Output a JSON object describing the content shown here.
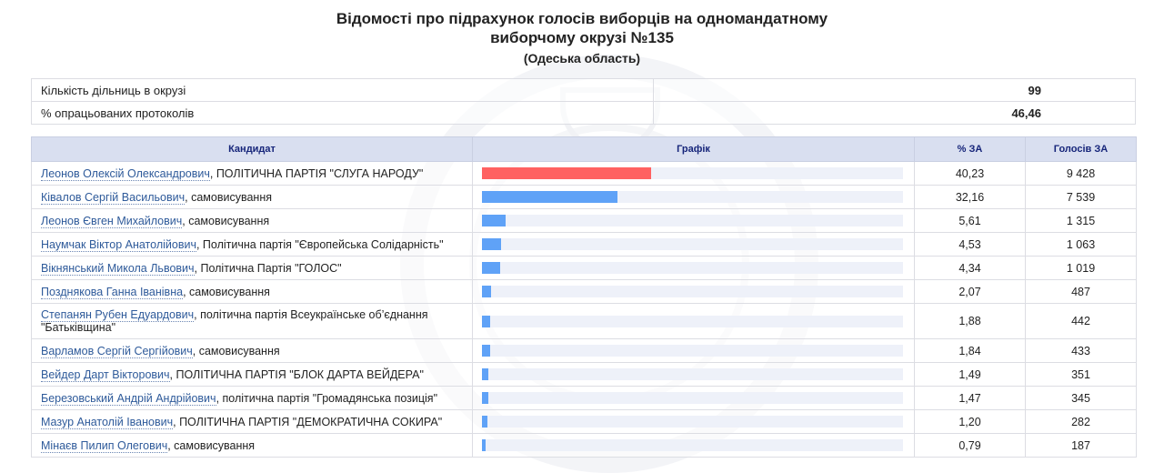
{
  "header": {
    "title_line1": "Відомості про підрахунок голосів виборців на одномандатному",
    "title_line2": "виборчому окрузі №135",
    "region": "(Одеська область)"
  },
  "summary": [
    {
      "label": "Кількість дільниць в окрузі",
      "value": "99"
    },
    {
      "label": "% опрацьованих протоколів",
      "value": "46,46"
    }
  ],
  "table": {
    "columns": [
      "Кандидат",
      "Графік",
      "% ЗА",
      "Голосів ЗА"
    ],
    "colors": {
      "leader": "#ff6161",
      "other": "#5fa2f7"
    },
    "rows": [
      {
        "name": "Леонов Олексій Олександрович",
        "party": ", ПОЛІТИЧНА ПАРТІЯ \"СЛУГА НАРОДУ\"",
        "pct": "40,23",
        "pct_value": 40.23,
        "votes": "9 428",
        "color": "#ff6161"
      },
      {
        "name": "Ківалов Сергій Васильович",
        "party": ", самовисування",
        "pct": "32,16",
        "pct_value": 32.16,
        "votes": "7 539",
        "color": "#5fa2f7"
      },
      {
        "name": "Леонов Євген Михайлович",
        "party": ", самовисування",
        "pct": "5,61",
        "pct_value": 5.61,
        "votes": "1 315",
        "color": "#5fa2f7"
      },
      {
        "name": "Наумчак Віктор Анатолійович",
        "party": ", Політична партія \"Європейська Солідарність\"",
        "pct": "4,53",
        "pct_value": 4.53,
        "votes": "1 063",
        "color": "#5fa2f7"
      },
      {
        "name": "Вікнянський Микола Львович",
        "party": ", Політична Партія \"ГОЛОС\"",
        "pct": "4,34",
        "pct_value": 4.34,
        "votes": "1 019",
        "color": "#5fa2f7"
      },
      {
        "name": "Позднякова Ганна Іванівна",
        "party": ", самовисування",
        "pct": "2,07",
        "pct_value": 2.07,
        "votes": "487",
        "color": "#5fa2f7"
      },
      {
        "name": "Степанян Рубен Едуардович",
        "party": ", політична партія Всеукраїнське об’єднання \"Батьківщина\"",
        "pct": "1,88",
        "pct_value": 1.88,
        "votes": "442",
        "color": "#5fa2f7",
        "tall": true
      },
      {
        "name": "Варламов Сергій Сергійович",
        "party": ", самовисування",
        "pct": "1,84",
        "pct_value": 1.84,
        "votes": "433",
        "color": "#5fa2f7"
      },
      {
        "name": "Вейдер Дарт Вікторович",
        "party": ", ПОЛІТИЧНА ПАРТІЯ \"БЛОК ДАРТА ВЕЙДЕРА\"",
        "pct": "1,49",
        "pct_value": 1.49,
        "votes": "351",
        "color": "#5fa2f7"
      },
      {
        "name": "Березовський Андрій Андрійович",
        "party": ", політична партія \"Громадянська позиція\"",
        "pct": "1,47",
        "pct_value": 1.47,
        "votes": "345",
        "color": "#5fa2f7"
      },
      {
        "name": "Мазур Анатолій Іванович",
        "party": ", ПОЛІТИЧНА ПАРТІЯ \"ДЕМОКРАТИЧНА СОКИРА\"",
        "pct": "1,20",
        "pct_value": 1.2,
        "votes": "282",
        "color": "#5fa2f7"
      },
      {
        "name": "Мінаєв Пилип Олегович",
        "party": ", самовисування",
        "pct": "0,79",
        "pct_value": 0.79,
        "votes": "187",
        "color": "#5fa2f7"
      }
    ]
  }
}
